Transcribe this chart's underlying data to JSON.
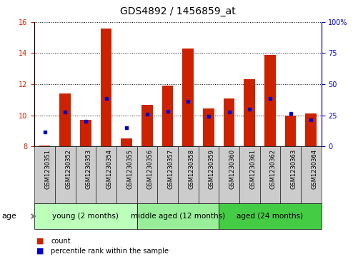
{
  "title": "GDS4892 / 1456859_at",
  "samples": [
    "GSM1230351",
    "GSM1230352",
    "GSM1230353",
    "GSM1230354",
    "GSM1230355",
    "GSM1230356",
    "GSM1230357",
    "GSM1230358",
    "GSM1230359",
    "GSM1230360",
    "GSM1230361",
    "GSM1230362",
    "GSM1230363",
    "GSM1230364"
  ],
  "counts": [
    8.05,
    11.4,
    9.7,
    15.6,
    8.5,
    10.65,
    11.9,
    14.3,
    10.45,
    11.1,
    12.3,
    13.9,
    10.0,
    10.1
  ],
  "percentile_counts": [
    8.9,
    10.2,
    9.6,
    11.1,
    9.2,
    10.05,
    10.25,
    10.9,
    9.95,
    10.2,
    10.4,
    11.1,
    10.1,
    9.7
  ],
  "ylim_left": [
    8,
    16
  ],
  "ylim_right": [
    0,
    100
  ],
  "yticks_left": [
    8,
    10,
    12,
    14,
    16
  ],
  "yticks_right": [
    0,
    25,
    50,
    75,
    100
  ],
  "ytick_right_labels": [
    "0",
    "25",
    "50",
    "75",
    "100%"
  ],
  "bar_color": "#cc2200",
  "dot_color": "#0000cc",
  "bar_bottom": 8.0,
  "groups": [
    {
      "label": "young (2 months)",
      "start": 0,
      "end": 5
    },
    {
      "label": "middle aged (12 months)",
      "start": 5,
      "end": 9
    },
    {
      "label": "aged (24 months)",
      "start": 9,
      "end": 14
    }
  ],
  "group_colors": [
    "#bbffbb",
    "#99ee99",
    "#44cc44"
  ],
  "age_label": "age",
  "legend_count_label": "count",
  "legend_pct_label": "percentile rank within the sample",
  "title_fontsize": 10,
  "tick_fontsize": 7,
  "group_fontsize": 7.5,
  "sample_fontsize": 6
}
